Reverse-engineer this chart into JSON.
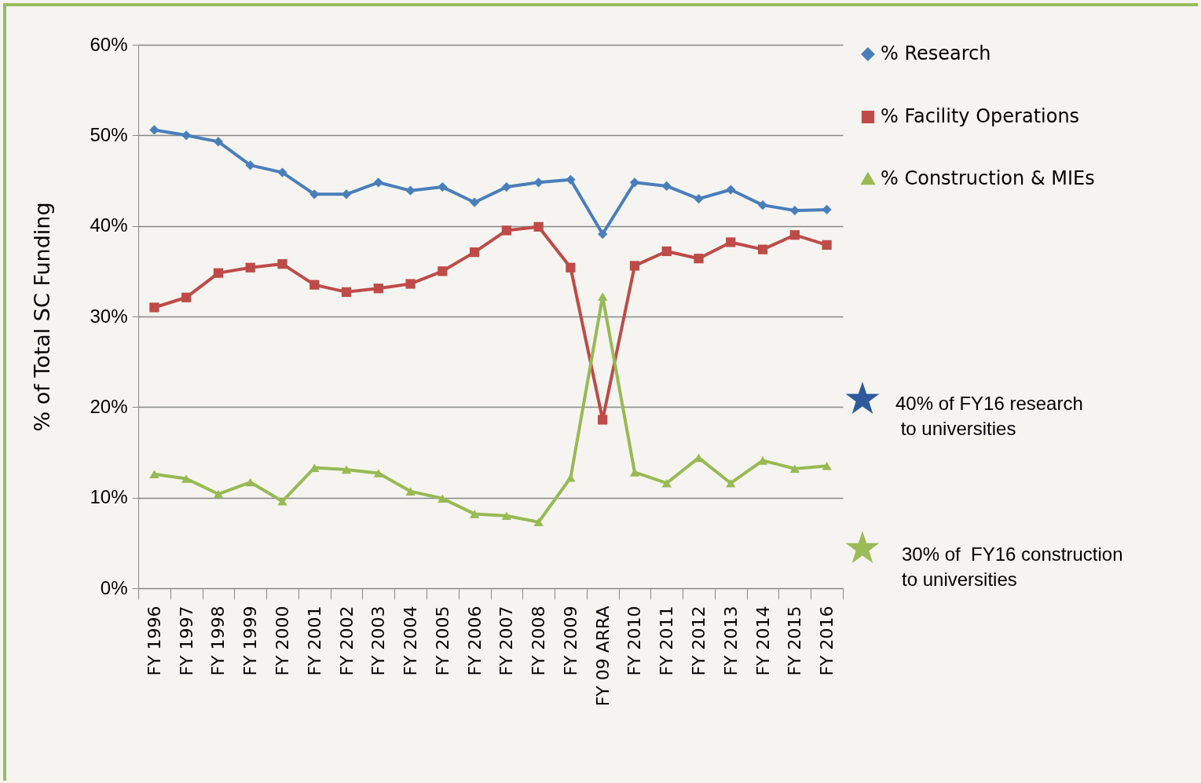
{
  "chart_data": {
    "type": "line",
    "ylabel": "% of Total SC Funding",
    "categories": [
      "FY 1996",
      "FY 1997",
      "FY 1998",
      "FY 1999",
      "FY 2000",
      "FY 2001",
      "FY 2002",
      "FY 2003",
      "FY 2004",
      "FY 2005",
      "FY 2006",
      "FY 2007",
      "FY 2008",
      "FY 2009",
      "FY 09 ARRA",
      "FY 2010",
      "FY 2011",
      "FY 2012",
      "FY 2013",
      "FY 2014",
      "FY 2015",
      "FY 2016"
    ],
    "series": [
      {
        "name": "% Research",
        "color": "#4a7ebb",
        "marker": "diamond",
        "values": [
          50.6,
          50.0,
          49.3,
          46.7,
          45.9,
          43.5,
          43.5,
          44.8,
          43.9,
          44.3,
          42.6,
          44.3,
          44.8,
          45.1,
          39.1,
          44.8,
          44.4,
          43.0,
          44.0,
          42.3,
          41.7,
          41.8
        ]
      },
      {
        "name": "% Facility Operations",
        "color": "#be4b48",
        "marker": "square",
        "values": [
          31.0,
          32.1,
          34.8,
          35.4,
          35.8,
          33.5,
          32.7,
          33.1,
          33.6,
          35.0,
          37.1,
          39.5,
          39.9,
          35.4,
          18.6,
          35.6,
          37.2,
          36.4,
          38.2,
          37.4,
          39.0,
          37.9
        ]
      },
      {
        "name": "% Construction & MIEs",
        "color": "#98b954",
        "marker": "triangle",
        "values": [
          12.6,
          12.1,
          10.4,
          11.7,
          9.6,
          13.3,
          13.1,
          12.7,
          10.7,
          9.9,
          8.2,
          8.0,
          7.3,
          12.2,
          32.2,
          12.8,
          11.6,
          14.4,
          11.6,
          14.1,
          13.2,
          13.5
        ]
      }
    ],
    "ylim": [
      0,
      60
    ],
    "yticks": [
      {
        "value": 0,
        "label": "0%"
      },
      {
        "value": 10,
        "label": "10%"
      },
      {
        "value": 20,
        "label": "20%"
      },
      {
        "value": 30,
        "label": "30%"
      },
      {
        "value": 40,
        "label": "40%"
      },
      {
        "value": 50,
        "label": "50%"
      },
      {
        "value": 60,
        "label": "60%"
      }
    ],
    "grid": "y",
    "legend": "right",
    "line_style": "solid",
    "annotations": [
      "40% of FY16 research\n to universities",
      "30% of  FY16 construction\nto universities"
    ]
  }
}
